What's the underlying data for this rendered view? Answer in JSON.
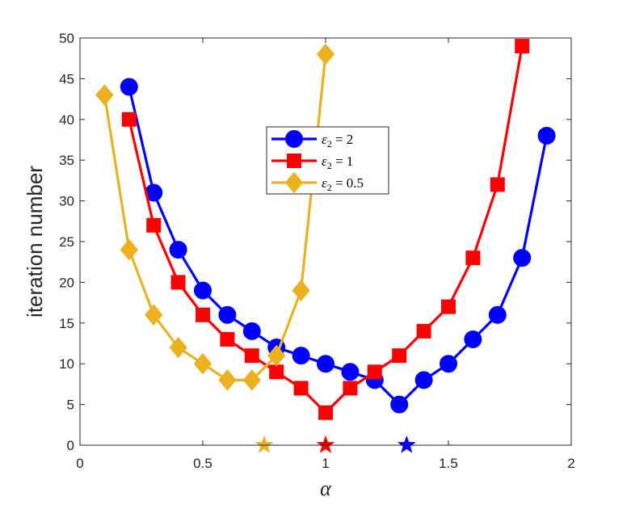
{
  "chart_data": {
    "type": "line",
    "title": "",
    "xlabel": "α",
    "ylabel": "iteration number",
    "xlim": [
      0,
      2
    ],
    "ylim": [
      0,
      50
    ],
    "x_ticks": [
      0,
      0.5,
      1,
      1.5,
      2
    ],
    "x_tick_labels": [
      "0",
      "0.5",
      "1",
      "1.5",
      "2"
    ],
    "y_ticks": [
      0,
      5,
      10,
      15,
      20,
      25,
      30,
      35,
      40,
      45,
      50
    ],
    "y_tick_labels": [
      "0",
      "5",
      "10",
      "15",
      "20",
      "25",
      "30",
      "35",
      "40",
      "45",
      "50"
    ],
    "grid": false,
    "legend_position": "upper-center",
    "series": [
      {
        "name": "ε2 = 2",
        "legend_var": "ε",
        "legend_sub": "2",
        "legend_rest": " = 2",
        "color": "#0000ff",
        "marker": "circle",
        "x": [
          0.2,
          0.3,
          0.4,
          0.5,
          0.6,
          0.7,
          0.8,
          0.9,
          1.0,
          1.1,
          1.2,
          1.3,
          1.4,
          1.5,
          1.6,
          1.7,
          1.8,
          1.9
        ],
        "values": [
          44,
          31,
          24,
          19,
          16,
          14,
          12,
          11,
          10,
          9,
          8,
          5,
          8,
          10,
          13,
          16,
          23,
          38
        ]
      },
      {
        "name": "ε2 = 1",
        "legend_var": "ε",
        "legend_sub": "2",
        "legend_rest": " = 1",
        "color": "#ff0000",
        "marker": "square",
        "x": [
          0.2,
          0.3,
          0.4,
          0.5,
          0.6,
          0.7,
          0.8,
          0.9,
          1.0,
          1.1,
          1.2,
          1.3,
          1.4,
          1.5,
          1.6,
          1.7,
          1.8
        ],
        "values": [
          40,
          27,
          20,
          16,
          13,
          11,
          9,
          7,
          4,
          7,
          9,
          11,
          14,
          17,
          23,
          32,
          49
        ]
      },
      {
        "name": "ε2 = 0.5",
        "legend_var": "ε",
        "legend_sub": "2",
        "legend_rest": " = 0.5",
        "color": "#edb120",
        "marker": "diamond",
        "x": [
          0.1,
          0.2,
          0.3,
          0.4,
          0.5,
          0.6,
          0.7,
          0.8,
          0.9,
          1.0
        ],
        "values": [
          43,
          24,
          16,
          12,
          10,
          8,
          8,
          11,
          19,
          48
        ]
      }
    ],
    "annotations": [
      {
        "type": "star",
        "x": 0.75,
        "y": 0,
        "color": "#edb120"
      },
      {
        "type": "star",
        "x": 1.0,
        "y": 0,
        "color": "#ff0000"
      },
      {
        "type": "star",
        "x": 1.33,
        "y": 0,
        "color": "#0000ff"
      }
    ]
  }
}
